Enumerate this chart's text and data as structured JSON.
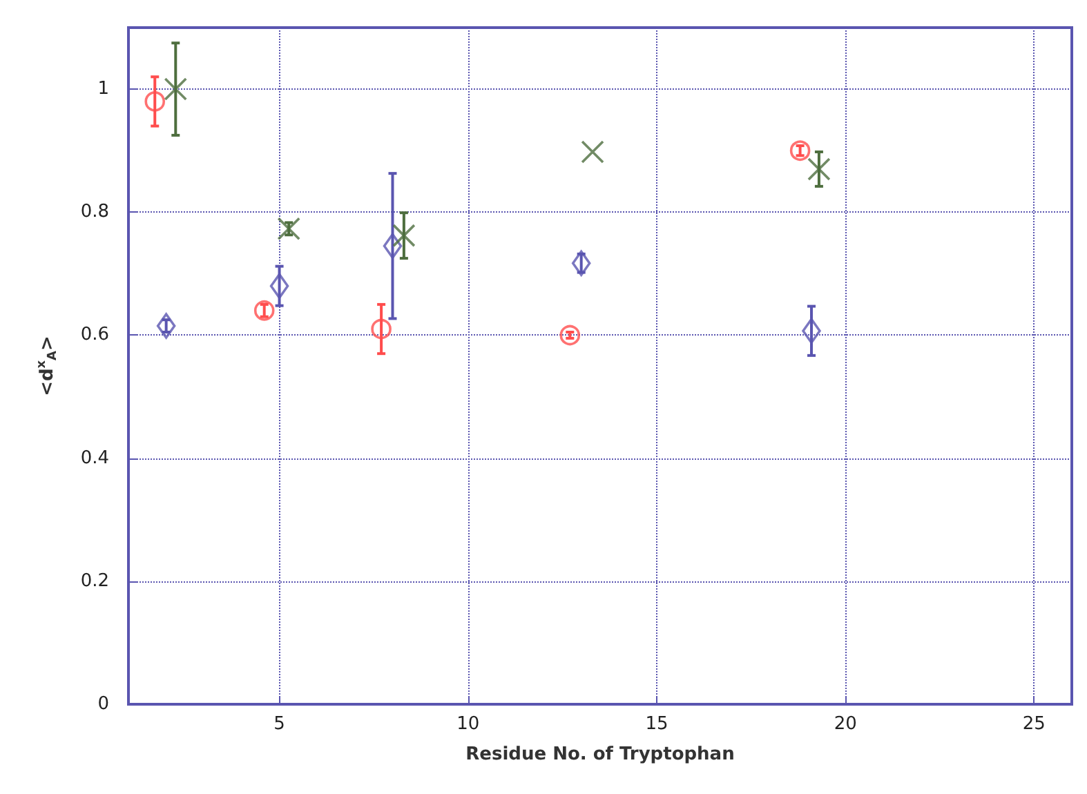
{
  "chart_data": {
    "type": "scatter",
    "xlabel": "Residue No. of Tryptophan",
    "ylabel": "<d$^{x}$$_{A}$>",
    "xlim": [
      1,
      26
    ],
    "ylim": [
      0,
      1.1
    ],
    "xticks": [
      5,
      10,
      15,
      20,
      25
    ],
    "yticks": [
      0,
      0.2,
      0.4,
      0.6,
      0.8,
      1
    ],
    "grid": true,
    "series": [
      {
        "color": "#ff4d4d",
        "marker": "circle",
        "x": [
          1.7,
          4.6,
          7.7,
          12.7,
          18.8
        ],
        "values": [
          0.98,
          0.64,
          0.61,
          0.6,
          0.9
        ],
        "errors": [
          0.04,
          0.01,
          0.04,
          0.005,
          0.008
        ]
      },
      {
        "color": "#5a55b0",
        "marker": "diamond",
        "x": [
          2.0,
          5.0,
          8.0,
          13.0,
          19.1
        ],
        "values": [
          0.615,
          0.68,
          0.745,
          0.717,
          0.607
        ],
        "errors": [
          0.01,
          0.032,
          0.118,
          0.015,
          0.04
        ]
      },
      {
        "color": "#4e6e3e",
        "marker": "cross",
        "x": [
          2.25,
          5.25,
          8.3,
          13.3,
          19.3
        ],
        "values": [
          1.0,
          0.773,
          0.762,
          0.898,
          0.87
        ],
        "errors": [
          0.075,
          0.01,
          0.037,
          null,
          0.028
        ]
      }
    ]
  }
}
